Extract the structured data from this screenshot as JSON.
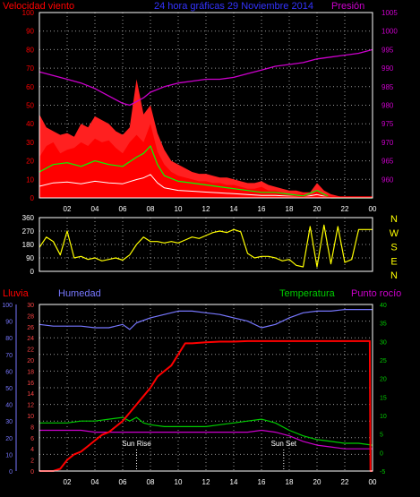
{
  "header": {
    "title": "24 hora gráficas 29 Noviembre 2014",
    "left_label": "Velocidad viento",
    "right_label": "Presión"
  },
  "x_ticks": [
    "02",
    "04",
    "06",
    "08",
    "10",
    "12",
    "14",
    "16",
    "18",
    "20",
    "22",
    "00"
  ],
  "colors": {
    "frame": "#ffffff",
    "grid": "#9a9a9a",
    "title": "#3333ff",
    "wind": "#ff0000",
    "gust": "#ff2020",
    "wind_avg": "#00ff00",
    "wind_low": "#ffffff",
    "pressure": "#cc00cc",
    "direction": "#ffff00",
    "rain": "#ff0000",
    "humidity": "#7777ff",
    "temperature": "#00cc00",
    "dewpoint": "#cc00cc",
    "compass": "#ffff00"
  },
  "chart_data": [
    {
      "type": "area",
      "title": "24 hora gráficas 29 Noviembre 2014",
      "ylabel_left": "Velocidad viento",
      "ylabel_right": "Presión",
      "ylim_left": [
        0,
        100
      ],
      "ylim_right": [
        955,
        1005
      ],
      "yticks_left": [
        "0",
        "10",
        "20",
        "30",
        "40",
        "50",
        "60",
        "70",
        "80",
        "90",
        "100"
      ],
      "yticks_right": [
        "960",
        "965",
        "970",
        "975",
        "980",
        "985",
        "990",
        "995",
        "1000",
        "1005"
      ],
      "series": [
        {
          "name": "Velocidad viento",
          "x": [
            0,
            0.5,
            1,
            1.5,
            2,
            2.5,
            3,
            3.5,
            4,
            4.5,
            5,
            5.5,
            6,
            6.5,
            7,
            7.5,
            8,
            8.5,
            9,
            9.5,
            10,
            10.5,
            11,
            11.5,
            12,
            12.5,
            13,
            13.5,
            14,
            14.5,
            15,
            15.5,
            16,
            16.5,
            17,
            17.5,
            18,
            18.5,
            19,
            19.5,
            20,
            20.5,
            21,
            21.5,
            22,
            22.5,
            23,
            23.5,
            24
          ],
          "values": [
            22,
            28,
            30,
            24,
            26,
            27,
            30,
            28,
            32,
            30,
            31,
            27,
            24,
            30,
            34,
            30,
            40,
            25,
            18,
            14,
            12,
            11,
            10,
            9,
            9,
            8,
            8,
            7,
            7,
            6,
            5,
            5,
            6,
            4,
            4,
            3,
            2,
            2,
            2,
            1,
            4,
            2,
            1,
            0,
            0,
            0,
            0,
            0,
            0
          ]
        },
        {
          "name": "Racha",
          "x": [
            0,
            0.5,
            1,
            1.5,
            2,
            2.5,
            3,
            3.5,
            4,
            4.5,
            5,
            5.5,
            6,
            6.5,
            7,
            7.5,
            8,
            8.5,
            9,
            9.5,
            10,
            10.5,
            11,
            11.5,
            12,
            12.5,
            13,
            13.5,
            14,
            14.5,
            15,
            15.5,
            16,
            16.5,
            17,
            17.5,
            18,
            18.5,
            19,
            19.5,
            20,
            20.5,
            21,
            21.5,
            22,
            22.5,
            23,
            23.5,
            24
          ],
          "values": [
            45,
            38,
            36,
            34,
            35,
            33,
            40,
            38,
            44,
            42,
            40,
            36,
            34,
            38,
            64,
            45,
            50,
            35,
            26,
            20,
            18,
            16,
            14,
            13,
            13,
            12,
            11,
            11,
            10,
            9,
            8,
            8,
            9,
            7,
            6,
            5,
            4,
            4,
            3,
            3,
            8,
            4,
            2,
            1,
            0,
            0,
            0,
            0,
            0
          ]
        },
        {
          "name": "Viento medio",
          "x": [
            0,
            1,
            2,
            3,
            4,
            5,
            6,
            7,
            7.5,
            8,
            8.5,
            9,
            10,
            11,
            12,
            13,
            14,
            15,
            16,
            17,
            18,
            19,
            20,
            20.5,
            21,
            22,
            23,
            24
          ],
          "values": [
            14,
            18,
            19,
            17,
            20,
            18,
            17,
            22,
            24,
            28,
            18,
            12,
            9,
            8,
            7,
            6,
            5,
            4,
            3,
            3,
            2,
            1,
            4,
            2,
            0,
            0,
            0,
            0
          ]
        },
        {
          "name": "Presión",
          "x": [
            0,
            1,
            2,
            3,
            4,
            5,
            6,
            6.5,
            7,
            7.5,
            8,
            9,
            10,
            11,
            12,
            13,
            14,
            15,
            16,
            17,
            18,
            19,
            20,
            21,
            22,
            23,
            24
          ],
          "values": [
            989,
            988,
            987,
            986,
            984.5,
            982.5,
            980.5,
            980,
            981,
            982,
            983.5,
            985,
            986,
            986.5,
            987,
            987,
            987.5,
            988.5,
            989.5,
            990.5,
            991,
            991.5,
            992.5,
            993,
            993.5,
            994,
            995
          ]
        }
      ]
    },
    {
      "type": "line",
      "ylabel_right": "NWSEN",
      "compass": [
        "N",
        "W",
        "S",
        "E",
        "N"
      ],
      "ylim_left": [
        0,
        360
      ],
      "yticks_left": [
        "0",
        "90",
        "180",
        "270",
        "360"
      ],
      "series": [
        {
          "name": "Dirección viento",
          "x": [
            0,
            0.5,
            1,
            1.5,
            2,
            2.5,
            3,
            3.5,
            4,
            4.5,
            5,
            5.5,
            6,
            6.5,
            7,
            7.5,
            8,
            8.5,
            9,
            9.5,
            10,
            10.5,
            11,
            11.5,
            12,
            12.5,
            13,
            13.5,
            14,
            14.5,
            15,
            15.5,
            16,
            16.5,
            17,
            17.5,
            18,
            18.5,
            19,
            19.5,
            20,
            20.5,
            21,
            21.5,
            22,
            22.5,
            23,
            23.5,
            24
          ],
          "values": [
            160,
            230,
            200,
            110,
            270,
            90,
            100,
            80,
            90,
            70,
            80,
            90,
            75,
            110,
            180,
            230,
            200,
            200,
            190,
            200,
            190,
            210,
            230,
            220,
            240,
            260,
            270,
            260,
            280,
            265,
            120,
            90,
            100,
            100,
            90,
            70,
            80,
            40,
            30,
            300,
            30,
            310,
            50,
            300,
            60,
            80,
            280,
            280,
            280
          ]
        }
      ]
    },
    {
      "type": "line",
      "ylabel_left_1": "Lluvia",
      "ylabel_left_2": "Humedad",
      "ylabel_right_1": "Temperatura",
      "ylabel_right_2": "Punto rocío",
      "ylim_humidity": [
        0,
        100
      ],
      "ylim_rain": [
        0,
        30
      ],
      "ylim_temp": [
        -5,
        40
      ],
      "yticks_humidity": [
        "0",
        "10",
        "20",
        "30",
        "40",
        "50",
        "60",
        "70",
        "80",
        "90",
        "100"
      ],
      "yticks_rain": [
        "0",
        "2",
        "4",
        "6",
        "8",
        "10",
        "12",
        "14",
        "16",
        "18",
        "20",
        "22",
        "24",
        "26",
        "28",
        "30"
      ],
      "yticks_temp": [
        "-5",
        "0",
        "5",
        "10",
        "15",
        "20",
        "25",
        "30",
        "35",
        "40"
      ],
      "annotations": [
        {
          "text": "Sun Rise",
          "x": 7.0
        },
        {
          "text": "Sun Set",
          "x": 17.6
        }
      ],
      "series": [
        {
          "name": "Humedad",
          "x": [
            0,
            1,
            2,
            3,
            4,
            5,
            6,
            6.5,
            7,
            8,
            9,
            10,
            11,
            12,
            13,
            14,
            15,
            16,
            17,
            18,
            19,
            20,
            21,
            22,
            23,
            24
          ],
          "values": [
            88,
            87,
            87,
            87,
            86,
            86,
            88,
            85,
            89,
            92,
            94,
            96,
            96,
            95,
            94,
            92,
            90,
            86,
            88,
            92,
            95,
            96,
            96,
            97,
            97,
            97
          ]
        },
        {
          "name": "Lluvia",
          "x": [
            0,
            1,
            1.5,
            2,
            2.5,
            3,
            3.5,
            4,
            4.5,
            5,
            5.5,
            6,
            6.5,
            7,
            7.5,
            8,
            8.5,
            9,
            9.5,
            10,
            10.5,
            11,
            12,
            13,
            14,
            15,
            16,
            17,
            18,
            19,
            20,
            21,
            22,
            23,
            23.8,
            23.85,
            24
          ],
          "values": [
            0,
            0,
            0.4,
            2,
            3,
            3.5,
            4.5,
            5.5,
            6.5,
            7,
            8,
            9,
            10.5,
            12,
            13.5,
            15,
            17,
            18,
            19,
            21,
            23,
            23,
            23.2,
            23.3,
            23.3,
            23.4,
            23.4,
            23.4,
            23.4,
            23.4,
            23.4,
            23.4,
            23.4,
            23.4,
            23.4,
            0,
            0
          ]
        },
        {
          "name": "Temperatura",
          "x": [
            0,
            1,
            2,
            3,
            4,
            5,
            6,
            6.5,
            7,
            7.5,
            8,
            9,
            10,
            11,
            12,
            13,
            14,
            15,
            16,
            17,
            18,
            19,
            20,
            21,
            22,
            23,
            24
          ],
          "values": [
            8,
            8,
            8,
            8.5,
            8.5,
            9,
            9.5,
            8.5,
            9.5,
            8,
            7.5,
            7,
            7,
            7,
            7,
            7.5,
            8,
            8.5,
            9,
            8,
            6,
            4.5,
            3.5,
            3,
            2.5,
            2.5,
            2
          ]
        },
        {
          "name": "Punto rocío",
          "x": [
            0,
            1,
            2,
            3,
            4,
            5,
            6,
            7,
            8,
            9,
            10,
            11,
            12,
            13,
            14,
            15,
            16,
            17,
            18,
            19,
            20,
            21,
            22,
            23,
            24
          ],
          "values": [
            6,
            6,
            6,
            6,
            5.5,
            5.5,
            5.5,
            5.5,
            5.5,
            5.5,
            5.5,
            5.5,
            5.5,
            5.5,
            5.5,
            5.5,
            6,
            5.5,
            4.5,
            3,
            2,
            1.5,
            1,
            1,
            1
          ]
        }
      ]
    }
  ]
}
